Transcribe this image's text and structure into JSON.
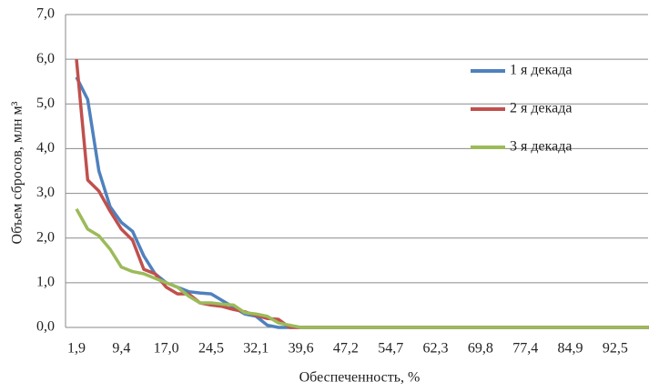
{
  "chart_data": {
    "type": "line",
    "y_label": "Объем сбросов, млн м³",
    "x_label": "Обеспеченность, %",
    "categories": [
      "1,9",
      null,
      null,
      null,
      "9,4",
      null,
      null,
      null,
      "17,0",
      null,
      null,
      null,
      "24,5",
      null,
      null,
      null,
      "32,1",
      null,
      null,
      null,
      "39,6",
      null,
      null,
      null,
      "47,2",
      null,
      null,
      null,
      "54,7",
      null,
      null,
      null,
      "62,3",
      null,
      null,
      null,
      "69,8",
      null,
      null,
      null,
      "77,4",
      null,
      null,
      null,
      "84,9",
      null,
      null,
      null,
      "92,5",
      null,
      null,
      null
    ],
    "series": [
      {
        "name": "1 я декада",
        "color": "#4f81bd",
        "values": [
          5.6,
          5.1,
          3.5,
          2.7,
          2.35,
          2.15,
          1.6,
          1.2,
          1.0,
          0.9,
          0.8,
          0.77,
          0.75,
          0.6,
          0.45,
          0.3,
          0.25,
          0.05,
          0,
          0,
          0,
          0,
          0,
          0,
          0,
          0,
          0,
          0,
          0,
          0,
          0,
          0,
          0,
          0,
          0,
          0,
          0,
          0,
          0,
          0,
          0,
          0,
          0,
          0,
          0,
          0,
          0,
          0,
          0,
          0,
          0,
          0
        ]
      },
      {
        "name": "2 я декада",
        "color": "#c0504d",
        "values": [
          6.0,
          3.3,
          3.05,
          2.6,
          2.2,
          1.95,
          1.3,
          1.2,
          0.9,
          0.75,
          0.75,
          0.55,
          0.5,
          0.47,
          0.4,
          0.35,
          0.27,
          0.2,
          0.18,
          0,
          0,
          0,
          0,
          0,
          0,
          0,
          0,
          0,
          0,
          0,
          0,
          0,
          0,
          0,
          0,
          0,
          0,
          0,
          0,
          0,
          0,
          0,
          0,
          0,
          0,
          0,
          0,
          0,
          0,
          0,
          0,
          0
        ]
      },
      {
        "name": "3 я декада",
        "color": "#9bbb59",
        "values": [
          2.65,
          2.2,
          2.05,
          1.75,
          1.35,
          1.25,
          1.2,
          1.1,
          1.0,
          0.9,
          0.7,
          0.55,
          0.55,
          0.52,
          0.5,
          0.33,
          0.3,
          0.25,
          0.1,
          0.05,
          0,
          0,
          0,
          0,
          0,
          0,
          0,
          0,
          0,
          0,
          0,
          0,
          0,
          0,
          0,
          0,
          0,
          0,
          0,
          0,
          0,
          0,
          0,
          0,
          0,
          0,
          0,
          0,
          0,
          0,
          0,
          0
        ]
      }
    ],
    "ylim": [
      0,
      7
    ],
    "yticks": [
      {
        "value": 0,
        "label": "0,0"
      },
      {
        "value": 1,
        "label": "1,0"
      },
      {
        "value": 2,
        "label": "2,0"
      },
      {
        "value": 3,
        "label": "3,0"
      },
      {
        "value": 4,
        "label": "4,0"
      },
      {
        "value": 5,
        "label": "5,0"
      },
      {
        "value": 6,
        "label": "6,0"
      },
      {
        "value": 7,
        "label": "7,0"
      }
    ],
    "grid": true
  }
}
